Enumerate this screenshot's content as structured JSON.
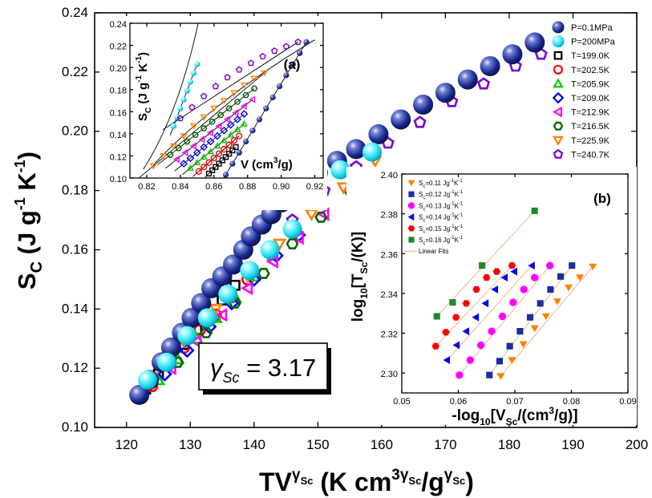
{
  "chart_data": [
    {
      "id": "main",
      "type": "scatter",
      "xlabel": {
        "base": "TV",
        "sup": "γ",
        "supsub": "Sc",
        "unit_pre": " (K cm",
        "unit_sup": "3γ",
        "unit_supsub": "Sc",
        "unit_mid": "/g",
        "unit_sup2": "γ",
        "unit_supsub2": "Sc",
        "unit_post": ")"
      },
      "ylabel": {
        "base": "S",
        "sub": "C",
        "unit_pre": " (J g",
        "sup1": "-1",
        "mid": " K",
        "sup2": "-1",
        "post": ")"
      },
      "xlim": [
        115,
        200
      ],
      "ylim": [
        0.1,
        0.24
      ],
      "xticks": [
        "120",
        "130",
        "140",
        "150",
        "160",
        "170",
        "180",
        "190",
        "200"
      ],
      "yticks": [
        "0.10",
        "0.12",
        "0.14",
        "0.16",
        "0.18",
        "0.20",
        "0.22",
        "0.24"
      ],
      "annotation": {
        "gamma": "γ",
        "sub": "Sc",
        "rest": " = 3.17"
      },
      "legend": [
        {
          "label": "P=0.1MPa",
          "marker": "ball",
          "color": "#1c2a8f"
        },
        {
          "label": "P=200MPa",
          "marker": "ball",
          "color": "#20e0f0"
        },
        {
          "label": "T=199.0K",
          "marker": "square",
          "color": "#000000"
        },
        {
          "label": "T=202.5K",
          "marker": "circle",
          "color": "#ff0000"
        },
        {
          "label": "T=205.9K",
          "marker": "triangle-up",
          "color": "#00cc00"
        },
        {
          "label": "T=209.0K",
          "marker": "diamond",
          "color": "#0000ff"
        },
        {
          "label": "T=212.9K",
          "marker": "triangle-left",
          "color": "#ff00ff"
        },
        {
          "label": "T=216.5K",
          "marker": "hexagon",
          "color": "#006400"
        },
        {
          "label": "T=225.9K",
          "marker": "triangle-down",
          "color": "#ff8000"
        },
        {
          "label": "T=240.7K",
          "marker": "pentagon",
          "color": "#7b00d6"
        }
      ],
      "series": [
        {
          "name": "P=0.1MPa",
          "x": [
            122,
            123.5,
            125.5,
            127,
            128.7,
            130.2,
            131.7,
            133.3,
            135,
            136.7,
            138.3,
            139.5,
            141.2,
            142.7,
            144.3,
            147,
            150,
            153,
            156,
            159.5,
            163,
            166.5,
            170,
            173.5,
            177,
            180.5,
            184
          ],
          "y": [
            0.111,
            0.116,
            0.122,
            0.127,
            0.132,
            0.137,
            0.142,
            0.147,
            0.151,
            0.155,
            0.16,
            0.1645,
            0.1685,
            0.172,
            0.176,
            0.181,
            0.186,
            0.19,
            0.194,
            0.199,
            0.204,
            0.209,
            0.213,
            0.2175,
            0.222,
            0.226,
            0.23
          ]
        },
        {
          "name": "P=200MPa",
          "x": [
            123.3,
            126.3,
            129.5,
            132.7,
            135.9,
            139.3,
            142.5,
            146,
            149.5,
            153.5,
            158.5
          ],
          "y": [
            0.116,
            0.122,
            0.131,
            0.137,
            0.145,
            0.153,
            0.16,
            0.167,
            0.177,
            0.187,
            0.193
          ]
        },
        {
          "name": "T=199.0K",
          "x": [
            123,
            125,
            127,
            129,
            131,
            133,
            135,
            137
          ],
          "y": [
            0.113,
            0.118,
            0.123,
            0.128,
            0.133,
            0.138,
            0.143,
            0.148
          ]
        },
        {
          "name": "T=202.5K",
          "x": [
            124,
            126.5,
            129,
            131.5,
            134,
            136.5,
            139
          ],
          "y": [
            0.114,
            0.121,
            0.127,
            0.133,
            0.138,
            0.144,
            0.15
          ]
        },
        {
          "name": "T=205.9K",
          "x": [
            125,
            128,
            131,
            134,
            137,
            140,
            143
          ],
          "y": [
            0.116,
            0.123,
            0.13,
            0.137,
            0.144,
            0.151,
            0.158
          ]
        },
        {
          "name": "T=209.0K",
          "x": [
            126,
            129.5,
            133,
            136.5,
            140,
            143.5,
            147
          ],
          "y": [
            0.118,
            0.126,
            0.134,
            0.142,
            0.15,
            0.158,
            0.165
          ]
        },
        {
          "name": "T=212.9K",
          "x": [
            127,
            131,
            135,
            139,
            143,
            147,
            151
          ],
          "y": [
            0.12,
            0.129,
            0.138,
            0.147,
            0.156,
            0.164,
            0.172
          ]
        },
        {
          "name": "T=216.5K",
          "x": [
            128,
            132.5,
            137,
            141.5,
            146,
            150.5,
            155
          ],
          "y": [
            0.122,
            0.132,
            0.142,
            0.152,
            0.162,
            0.171,
            0.18
          ]
        },
        {
          "name": "T=225.9K",
          "x": [
            124,
            129,
            134,
            139,
            144,
            149,
            154,
            159
          ],
          "y": [
            0.117,
            0.129,
            0.14,
            0.151,
            0.162,
            0.172,
            0.181,
            0.19
          ]
        },
        {
          "name": "T=240.7K",
          "x": [
            146,
            151,
            156,
            161,
            166,
            171,
            176,
            181,
            185
          ],
          "y": [
            0.17,
            0.18,
            0.188,
            0.196,
            0.203,
            0.21,
            0.216,
            0.222,
            0.226
          ]
        }
      ]
    },
    {
      "id": "inset-a",
      "type": "scatter",
      "panel_label": "(a)",
      "xlabel": {
        "text": "V (cm",
        "sup": "3",
        "post": "/g)"
      },
      "ylabel": {
        "base": "S",
        "sub": "C",
        "unit": " (J g",
        "sup1": "-1",
        "mid": " K",
        "sup2": "-1",
        "post": ")"
      },
      "xlim": [
        0.81,
        0.925
      ],
      "ylim": [
        0.1,
        0.24
      ],
      "xticks": [
        "0.82",
        "0.84",
        "0.86",
        "0.88",
        "0.90",
        "0.92"
      ],
      "yticks": [
        "0.10",
        "0.12",
        "0.14",
        "0.16",
        "0.18",
        "0.20",
        "0.22",
        "0.24"
      ],
      "series": [
        {
          "name": "P=0.1MPa",
          "x": [
            0.867,
            0.871,
            0.875,
            0.879,
            0.883,
            0.887,
            0.891,
            0.895,
            0.899,
            0.903,
            0.907,
            0.911,
            0.915
          ],
          "y": [
            0.103,
            0.113,
            0.123,
            0.133,
            0.143,
            0.153,
            0.163,
            0.173,
            0.183,
            0.193,
            0.203,
            0.213,
            0.223
          ]
        },
        {
          "name": "P=200MPa",
          "x": [
            0.836,
            0.838,
            0.84,
            0.842,
            0.844,
            0.846,
            0.848,
            0.85
          ],
          "y": [
            0.147,
            0.155,
            0.163,
            0.171,
            0.179,
            0.187,
            0.195,
            0.203
          ]
        },
        {
          "name": "T=199.0K",
          "x": [
            0.857,
            0.859,
            0.861,
            0.863,
            0.865,
            0.867,
            0.869,
            0.871,
            0.873
          ],
          "y": [
            0.104,
            0.107,
            0.11,
            0.113,
            0.116,
            0.119,
            0.122,
            0.125,
            0.128
          ]
        },
        {
          "name": "T=202.5K",
          "x": [
            0.851,
            0.854,
            0.857,
            0.86,
            0.863,
            0.866,
            0.869,
            0.872,
            0.875
          ],
          "y": [
            0.106,
            0.11,
            0.114,
            0.118,
            0.122,
            0.126,
            0.13,
            0.134,
            0.138
          ]
        },
        {
          "name": "T=205.9K",
          "x": [
            0.846,
            0.85,
            0.854,
            0.858,
            0.862,
            0.866,
            0.87,
            0.874,
            0.878
          ],
          "y": [
            0.109,
            0.114,
            0.119,
            0.124,
            0.129,
            0.134,
            0.139,
            0.144,
            0.149
          ]
        },
        {
          "name": "T=209.0K",
          "x": [
            0.842,
            0.846,
            0.85,
            0.854,
            0.858,
            0.862,
            0.866,
            0.87,
            0.874,
            0.878
          ],
          "y": [
            0.113,
            0.118,
            0.123,
            0.128,
            0.133,
            0.138,
            0.143,
            0.148,
            0.153,
            0.158
          ]
        },
        {
          "name": "T=212.9K",
          "x": [
            0.838,
            0.843,
            0.848,
            0.853,
            0.858,
            0.863,
            0.868,
            0.873,
            0.878,
            0.883
          ],
          "y": [
            0.117,
            0.123,
            0.129,
            0.135,
            0.141,
            0.147,
            0.153,
            0.159,
            0.165,
            0.171
          ]
        },
        {
          "name": "T=216.5K",
          "x": [
            0.834,
            0.839,
            0.844,
            0.849,
            0.854,
            0.859,
            0.864,
            0.869,
            0.874,
            0.879,
            0.884
          ],
          "y": [
            0.121,
            0.127,
            0.133,
            0.139,
            0.145,
            0.151,
            0.157,
            0.163,
            0.169,
            0.175,
            0.181
          ]
        },
        {
          "name": "T=225.9K",
          "x": [
            0.824,
            0.83,
            0.836,
            0.842,
            0.848,
            0.854,
            0.86,
            0.866,
            0.872,
            0.878,
            0.884,
            0.89
          ],
          "y": [
            0.111,
            0.12,
            0.129,
            0.138,
            0.147,
            0.155,
            0.163,
            0.17,
            0.177,
            0.184,
            0.19,
            0.195
          ]
        },
        {
          "name": "T=240.7K",
          "x": [
            0.84,
            0.847,
            0.854,
            0.861,
            0.868,
            0.875,
            0.882,
            0.889,
            0.896,
            0.903,
            0.91
          ],
          "y": [
            0.154,
            0.164,
            0.174,
            0.183,
            0.191,
            0.198,
            0.204,
            0.21,
            0.215,
            0.219,
            0.223
          ]
        }
      ]
    },
    {
      "id": "inset-b",
      "type": "scatter",
      "panel_label": "(b)",
      "xlabel": {
        "pre": "-log",
        "sub": "10",
        "mid": "[V",
        "sub2": "Sc",
        "post": "/(cm",
        "sup": "3",
        "post2": "/g)]"
      },
      "ylabel": {
        "pre": "log",
        "sub": "10",
        "mid": "[T",
        "sub2": "Sc",
        "post": "/(K)]"
      },
      "xlim": [
        0.05,
        0.09
      ],
      "ylim": [
        2.29,
        2.4
      ],
      "xticks": [
        "0.05",
        "0.06",
        "0.07",
        "0.08",
        "0.09"
      ],
      "yticks": [
        "2.30",
        "2.32",
        "2.34",
        "2.36",
        "2.38",
        "2.40"
      ],
      "legend_fit": "Linear Fits",
      "series": [
        {
          "name": "S",
          "sub": "c",
          "label": "=0.11 Jg",
          "sup1": "-1",
          "mid": "K",
          "sup2": "-1",
          "marker": "triangle-down",
          "color": "#ff8000",
          "x": [
            0.0675,
            0.0695,
            0.0715,
            0.0735,
            0.0755,
            0.0775,
            0.0795,
            0.0815,
            0.0838
          ],
          "y": [
            2.2985,
            2.3065,
            2.3145,
            2.3225,
            2.3285,
            2.336,
            2.343,
            2.348,
            2.3535
          ]
        },
        {
          "name": "S",
          "sub": "c",
          "label": "=0.12 Jg",
          "sup1": "-1",
          "mid": "K",
          "sup2": "-1",
          "marker": "square",
          "color": "#1a2ea0",
          "x": [
            0.0655,
            0.0673,
            0.0691,
            0.0709,
            0.0727,
            0.0745,
            0.0763,
            0.0781,
            0.0801
          ],
          "y": [
            2.299,
            2.306,
            2.3135,
            2.321,
            2.328,
            2.335,
            2.342,
            2.3485,
            2.354
          ]
        },
        {
          "name": "S",
          "sub": "c",
          "label": "=0.13 Jg",
          "sup1": "-1",
          "mid": "K",
          "sup2": "-1",
          "marker": "circle",
          "color": "#ff00ff",
          "x": [
            0.0602,
            0.0621,
            0.064,
            0.0659,
            0.0678,
            0.0697,
            0.0716,
            0.0735,
            0.0762
          ],
          "y": [
            2.299,
            2.3065,
            2.314,
            2.321,
            2.3285,
            2.3355,
            2.342,
            2.348,
            2.354
          ]
        },
        {
          "name": "S",
          "sub": "c",
          "label": "=0.14 Jg",
          "sup1": "-1",
          "mid": "K",
          "sup2": "-1",
          "marker": "triangle-left",
          "color": "#0000ee",
          "x": [
            0.058,
            0.0597,
            0.0614,
            0.0631,
            0.0648,
            0.0665,
            0.0682,
            0.0699,
            0.073
          ],
          "y": [
            2.3065,
            2.314,
            2.321,
            2.328,
            2.335,
            2.342,
            2.348,
            2.351,
            2.354
          ]
        },
        {
          "name": "S",
          "sub": "c",
          "label": "=0.15 Jg",
          "sup1": "-1",
          "mid": "K",
          "sup2": "-1",
          "marker": "hexagon",
          "color": "#ff0000",
          "x": [
            0.056,
            0.0578,
            0.0596,
            0.0614,
            0.0632,
            0.065,
            0.0668,
            0.0695
          ],
          "y": [
            2.3135,
            2.3205,
            2.328,
            2.335,
            2.342,
            2.348,
            2.351,
            2.354
          ]
        },
        {
          "name": "S",
          "sub": "c",
          "label": "=0.16 Jg",
          "sup1": "-1",
          "mid": "K",
          "sup2": "-1",
          "marker": "square",
          "color": "#1c8a2a",
          "x": [
            0.0562,
            0.059,
            0.0642,
            0.0735
          ],
          "y": [
            2.3285,
            2.3355,
            2.354,
            2.3815
          ]
        }
      ]
    }
  ]
}
